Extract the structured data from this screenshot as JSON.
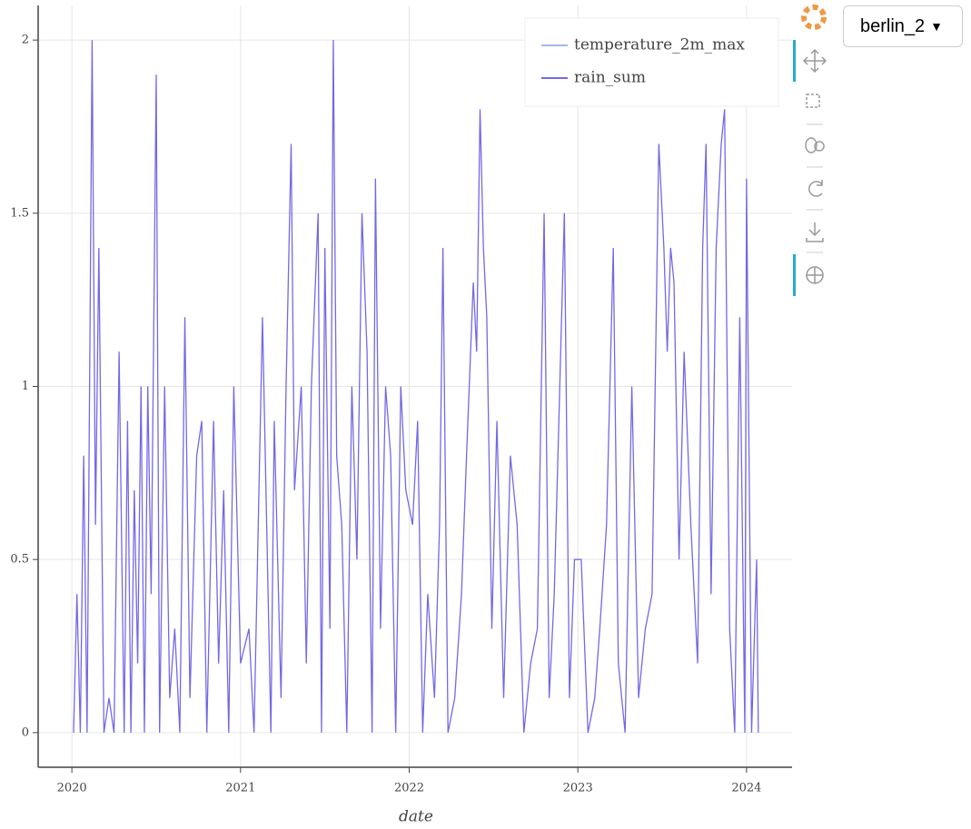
{
  "chart_data": {
    "type": "line",
    "x_label": "date",
    "x": [
      2020.01,
      2020.03,
      2020.05,
      2020.07,
      2020.09,
      2020.12,
      2020.14,
      2020.16,
      2020.19,
      2020.22,
      2020.25,
      2020.28,
      2020.31,
      2020.33,
      2020.35,
      2020.37,
      2020.39,
      2020.41,
      2020.43,
      2020.45,
      2020.47,
      2020.5,
      2020.52,
      2020.55,
      2020.58,
      2020.61,
      2020.64,
      2020.67,
      2020.7,
      2020.74,
      2020.77,
      2020.8,
      2020.84,
      2020.87,
      2020.9,
      2020.93,
      2020.96,
      2021.0,
      2021.05,
      2021.08,
      2021.13,
      2021.18,
      2021.2,
      2021.24,
      2021.27,
      2021.3,
      2021.32,
      2021.36,
      2021.39,
      2021.42,
      2021.46,
      2021.48,
      2021.5,
      2021.53,
      2021.55,
      2021.57,
      2021.6,
      2021.63,
      2021.66,
      2021.69,
      2021.72,
      2021.75,
      2021.78,
      2021.8,
      2021.83,
      2021.86,
      2021.89,
      2021.92,
      2021.95,
      2021.98,
      2022.02,
      2022.05,
      2022.08,
      2022.11,
      2022.15,
      2022.18,
      2022.2,
      2022.23,
      2022.27,
      2022.31,
      2022.34,
      2022.38,
      2022.4,
      2022.42,
      2022.44,
      2022.46,
      2022.49,
      2022.52,
      2022.56,
      2022.6,
      2022.64,
      2022.68,
      2022.72,
      2022.76,
      2022.8,
      2022.83,
      2022.86,
      2022.92,
      2022.95,
      2022.98,
      2023.02,
      2023.06,
      2023.1,
      2023.13,
      2023.17,
      2023.21,
      2023.24,
      2023.28,
      2023.32,
      2023.36,
      2023.4,
      2023.44,
      2023.48,
      2023.51,
      2023.53,
      2023.55,
      2023.57,
      2023.6,
      2023.63,
      2023.67,
      2023.71,
      2023.74,
      2023.76,
      2023.79,
      2023.82,
      2023.85,
      2023.87,
      2023.9,
      2023.93,
      2023.96,
      2023.99,
      2024.0,
      2024.03,
      2024.06,
      2024.07
    ],
    "series": [
      {
        "name": "temperature_2m_max",
        "color": "#9fb8ee"
      },
      {
        "name": "rain_sum",
        "color": "#7468e6",
        "values": [
          0,
          0.4,
          0,
          0.8,
          0,
          2.0,
          0.6,
          1.4,
          0,
          0.1,
          0,
          1.1,
          0,
          0.9,
          0,
          0.7,
          0.2,
          1.0,
          0,
          1.0,
          0.4,
          1.9,
          0,
          1.0,
          0.1,
          0.3,
          0,
          1.2,
          0.1,
          0.8,
          0.9,
          0,
          0.9,
          0.2,
          0.7,
          0,
          1.0,
          0.2,
          0.3,
          0,
          1.2,
          0,
          0.9,
          0.1,
          1.0,
          1.7,
          0.7,
          1.0,
          0.2,
          1.0,
          1.5,
          0,
          1.4,
          0.3,
          2.0,
          0.8,
          0.6,
          0,
          1.0,
          0.5,
          1.5,
          1.1,
          0,
          1.6,
          0.3,
          1.0,
          0.8,
          0,
          1.0,
          0.7,
          0.6,
          0.9,
          0,
          0.4,
          0.1,
          0.6,
          1.4,
          0,
          0.1,
          0.4,
          0.8,
          1.3,
          1.1,
          1.8,
          1.4,
          1.2,
          0.3,
          0.9,
          0.1,
          0.8,
          0.6,
          0,
          0.2,
          0.3,
          1.5,
          0.1,
          0.4,
          1.5,
          0.1,
          0.5,
          0.5,
          0,
          0.1,
          0.3,
          0.6,
          1.4,
          0.2,
          0,
          1.0,
          0.1,
          0.3,
          0.4,
          1.7,
          1.4,
          1.1,
          1.4,
          1.3,
          0.5,
          1.1,
          0.6,
          0.2,
          1.4,
          1.7,
          0.4,
          1.4,
          1.7,
          1.8,
          0.3,
          0,
          1.2,
          0,
          1.6,
          0,
          0.5,
          0
        ]
      }
    ],
    "xlim": [
      2019.8,
      2024.27
    ],
    "xticks": [
      2020,
      2021,
      2022,
      2023,
      2024
    ],
    "ylim": [
      -0.1,
      2.1
    ],
    "yticks": [
      0,
      0.5,
      1,
      1.5,
      2
    ],
    "grid": true,
    "legend": "top-right",
    "dropdown": "berlin_2"
  }
}
